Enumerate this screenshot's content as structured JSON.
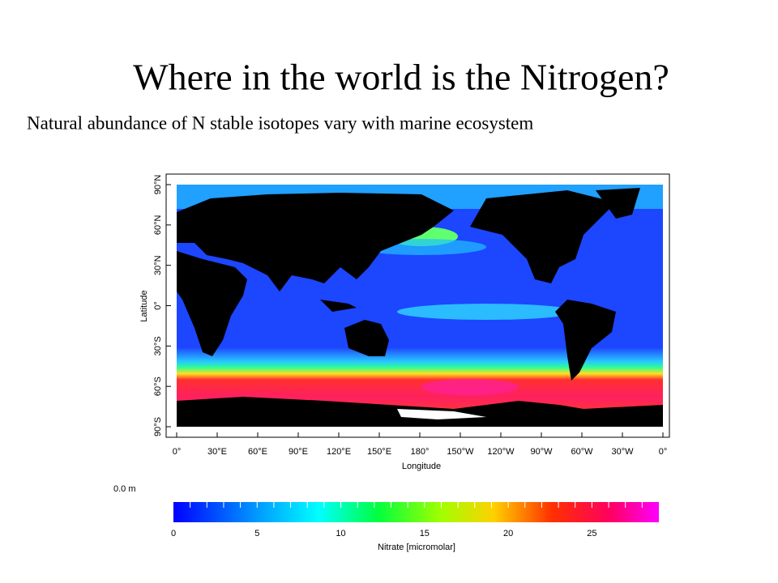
{
  "header": {
    "title": "Where in the world is the Nitrogen?",
    "subtitle": "Natural abundance of N stable isotopes vary with marine ecosystem"
  },
  "map": {
    "y_axis_label": "Latitude",
    "x_axis_label": "Longitude",
    "lat_labels": [
      "90°N",
      "60°N",
      "30°N",
      "0°",
      "30°S",
      "60°S",
      "90°S"
    ],
    "lon_labels": [
      "0°",
      "30°E",
      "60°E",
      "90°E",
      "120°E",
      "150°E",
      "180°",
      "150°W",
      "120°W",
      "90°W",
      "60°W",
      "30°W",
      "0°"
    ],
    "depth_label": "0.0 m"
  },
  "colorbar": {
    "label": "Nitrate [micromolar]",
    "ticks": [
      "0",
      "5",
      "10",
      "15",
      "20",
      "25"
    ]
  }
}
